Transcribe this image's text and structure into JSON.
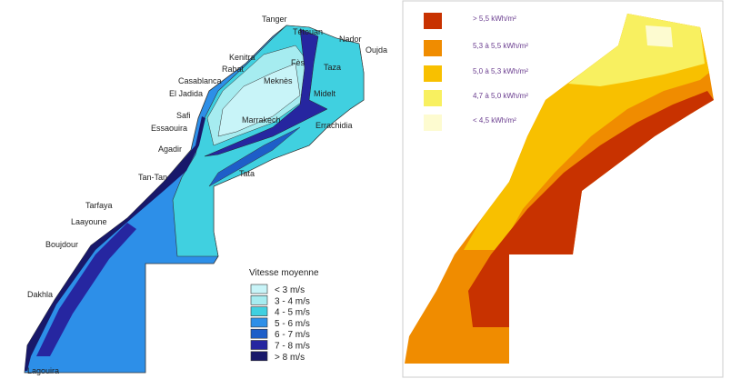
{
  "wind_map": {
    "legend_title": "Vitesse moyenne",
    "legend": [
      {
        "label": "< 3 m/s",
        "color": "#c8f4f8"
      },
      {
        "label": "3 - 4 m/s",
        "color": "#a6ecf0"
      },
      {
        "label": "4 - 5 m/s",
        "color": "#40d0e0"
      },
      {
        "label": "5 - 6 m/s",
        "color": "#2d8fe8"
      },
      {
        "label": "6 - 7 m/s",
        "color": "#1e5ec8"
      },
      {
        "label": "7 - 8 m/s",
        "color": "#2626a0"
      },
      {
        "label": "> 8 m/s",
        "color": "#18186a"
      }
    ],
    "cities": [
      "Tanger",
      "Tétouan",
      "Nador",
      "Oujda",
      "Kenitra",
      "Rabat",
      "Fès",
      "Taza",
      "Casablanca",
      "Meknès",
      "El Jadida",
      "Midelt",
      "Safi",
      "Marrakech",
      "Essaouira",
      "Errachidia",
      "Agadir",
      "Tata",
      "Tan-Tan",
      "Tarfaya",
      "Laayoune",
      "Boujdour",
      "Dakhla",
      "Lagouira"
    ]
  },
  "solar_map": {
    "legend": [
      {
        "label": "> 5,5 kWh/m²",
        "color": "#c83200"
      },
      {
        "label": "5,3 à 5,5 kWh/m²",
        "color": "#f08c00"
      },
      {
        "label": "5,0 à 5,3 kWh/m²",
        "color": "#f8c000"
      },
      {
        "label": "4,7 à 5,0 kWh/m²",
        "color": "#f8f060"
      },
      {
        "label": "< 4,5 kWh/m²",
        "color": "#fdfbd0"
      }
    ]
  }
}
